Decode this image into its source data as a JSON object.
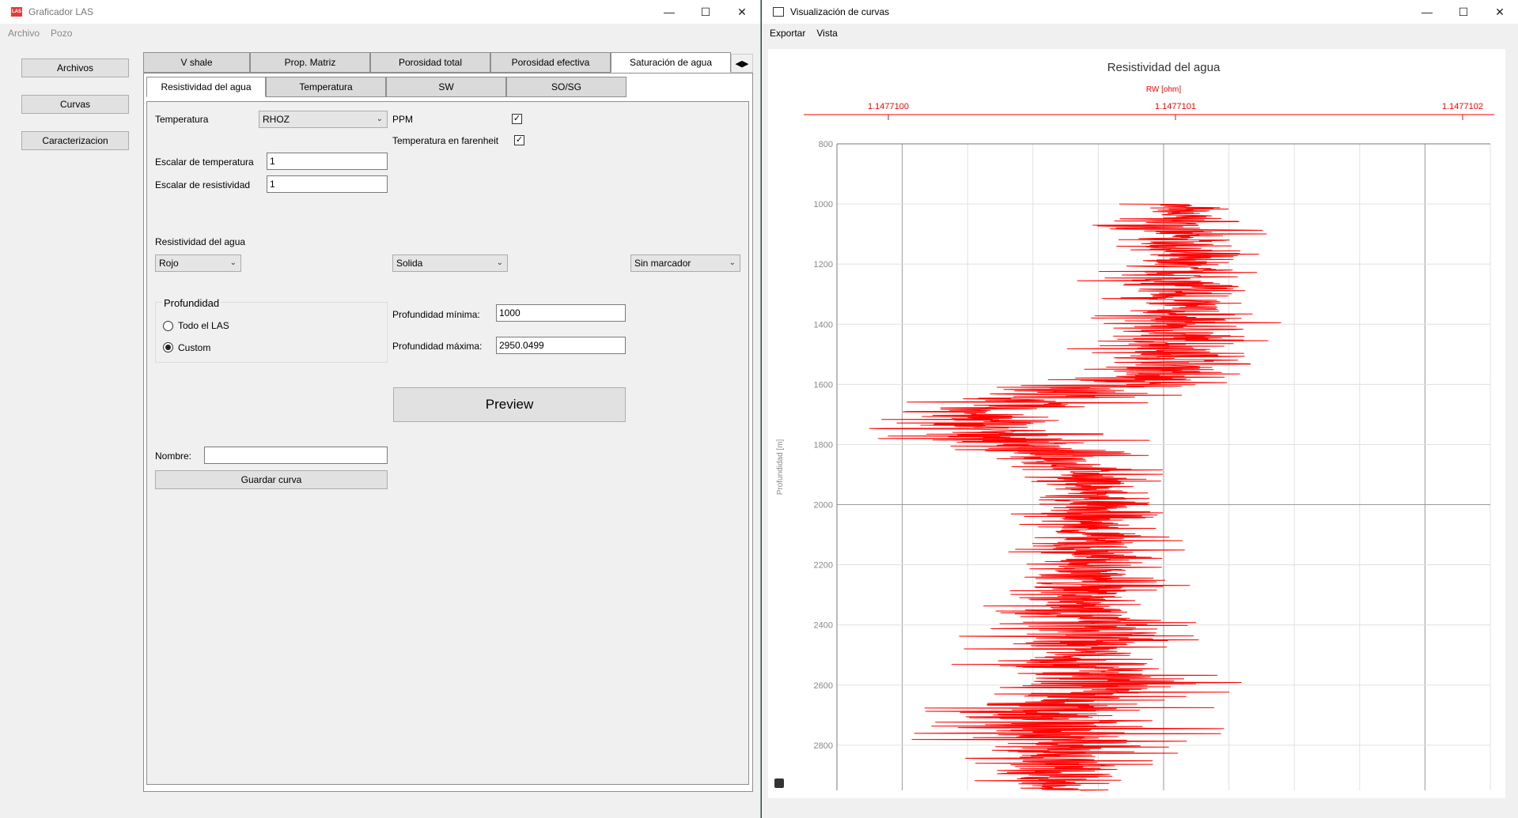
{
  "left_window": {
    "title": "Graficador LAS",
    "icon_text": "LAS",
    "menu": [
      "Archivo",
      "Pozo"
    ],
    "side_buttons": [
      "Archivos",
      "Curvas",
      "Caracterizacion"
    ],
    "tabs": [
      "V shale",
      "Prop. Matriz",
      "Porosidad total",
      "Porosidad efectiva",
      "Saturación de agua"
    ],
    "active_tab": "Saturación de agua",
    "subtabs": [
      "Resistividad del agua",
      "Temperatura",
      "SW",
      "SO/SG"
    ],
    "active_subtab": "Resistividad del agua",
    "form": {
      "temperatura_label": "Temperatura",
      "temperatura_value": "RHOZ",
      "ppm_label": "PPM",
      "ppm_checked": true,
      "farenheit_label": "Temperatura en farenheit",
      "farenheit_checked": true,
      "escalar_temp_label": "Escalar de temperatura",
      "escalar_temp_value": "1",
      "escalar_res_label": "Escalar de resistividad",
      "escalar_res_value": "1",
      "resistividad_label": "Resistividad del agua",
      "color_value": "Rojo",
      "line_style_value": "Solida",
      "marker_value": "Sin marcador",
      "profundidad_group": "Profundidad",
      "radio_todo": "Todo el LAS",
      "radio_custom": "Custom",
      "radio_selected": "Custom",
      "prof_min_label": "Profundidad mínima:",
      "prof_min_value": "1000",
      "prof_max_label": "Profundidad máxima:",
      "prof_max_value": "2950.0499",
      "preview_label": "Preview",
      "nombre_label": "Nombre:",
      "nombre_value": "",
      "guardar_label": "Guardar curva"
    }
  },
  "right_window": {
    "title": "Visualización de curvas",
    "menu": [
      "Exportar",
      "Vista"
    ]
  },
  "colors": {
    "curve": "#ff0000",
    "axis_top": "#ff0000",
    "grid": "#e0e0e0",
    "axis_gray": "#888888"
  },
  "chart_data": {
    "type": "line",
    "title": "Resistividad del agua",
    "xlabel": "RW [ohm]",
    "ylabel": "Profundidad [m]",
    "x_ticks": [
      "1.1477100",
      "1.1477101",
      "1.1477102"
    ],
    "xlim": [
      1.14771,
      1.1477102
    ],
    "y_ticks": [
      800,
      1000,
      1200,
      1400,
      1600,
      1800,
      2000,
      2200,
      2400,
      2600,
      2800
    ],
    "ylim": [
      800,
      2950
    ],
    "y_inverted": true,
    "grid": true,
    "series": [
      {
        "name": "RW",
        "color": "#ff0000",
        "depth": [
          1000,
          1050,
          1100,
          1150,
          1200,
          1250,
          1300,
          1350,
          1400,
          1450,
          1500,
          1550,
          1600,
          1650,
          1700,
          1750,
          1800,
          1850,
          1900,
          1950,
          2000,
          2050,
          2100,
          2150,
          2200,
          2250,
          2300,
          2350,
          2400,
          2450,
          2500,
          2550,
          2600,
          2650,
          2700,
          2750,
          2800,
          2850,
          2900,
          2950
        ],
        "center": [
          1.1477101,
          1.1477101,
          1.1477101,
          1.1477101,
          1.1477101,
          1.1477101,
          1.1477101,
          1.1477101,
          1.1477101,
          1.1477101,
          1.1477101,
          1.1477101,
          1.14771008,
          1.14771005,
          1.14771003,
          1.14771003,
          1.14771005,
          1.14771006,
          1.14771007,
          1.14771007,
          1.14771007,
          1.14771007,
          1.14771007,
          1.14771007,
          1.14771007,
          1.14771007,
          1.14771007,
          1.14771007,
          1.14771007,
          1.14771007,
          1.14771007,
          1.14771007,
          1.14771007,
          1.14771006,
          1.14771006,
          1.14771006,
          1.14771006,
          1.14771006,
          1.14771006,
          1.14771006
        ],
        "spread": [
          0.2,
          0.3,
          0.3,
          0.3,
          0.3,
          0.4,
          0.4,
          0.3,
          0.4,
          0.4,
          0.4,
          0.4,
          0.5,
          0.5,
          0.4,
          0.5,
          0.4,
          0.3,
          0.3,
          0.3,
          0.3,
          0.3,
          0.3,
          0.4,
          0.4,
          0.4,
          0.4,
          0.4,
          0.4,
          0.5,
          0.5,
          0.5,
          0.6,
          0.6,
          0.6,
          0.6,
          0.6,
          0.5,
          0.4,
          0.2
        ]
      }
    ]
  }
}
